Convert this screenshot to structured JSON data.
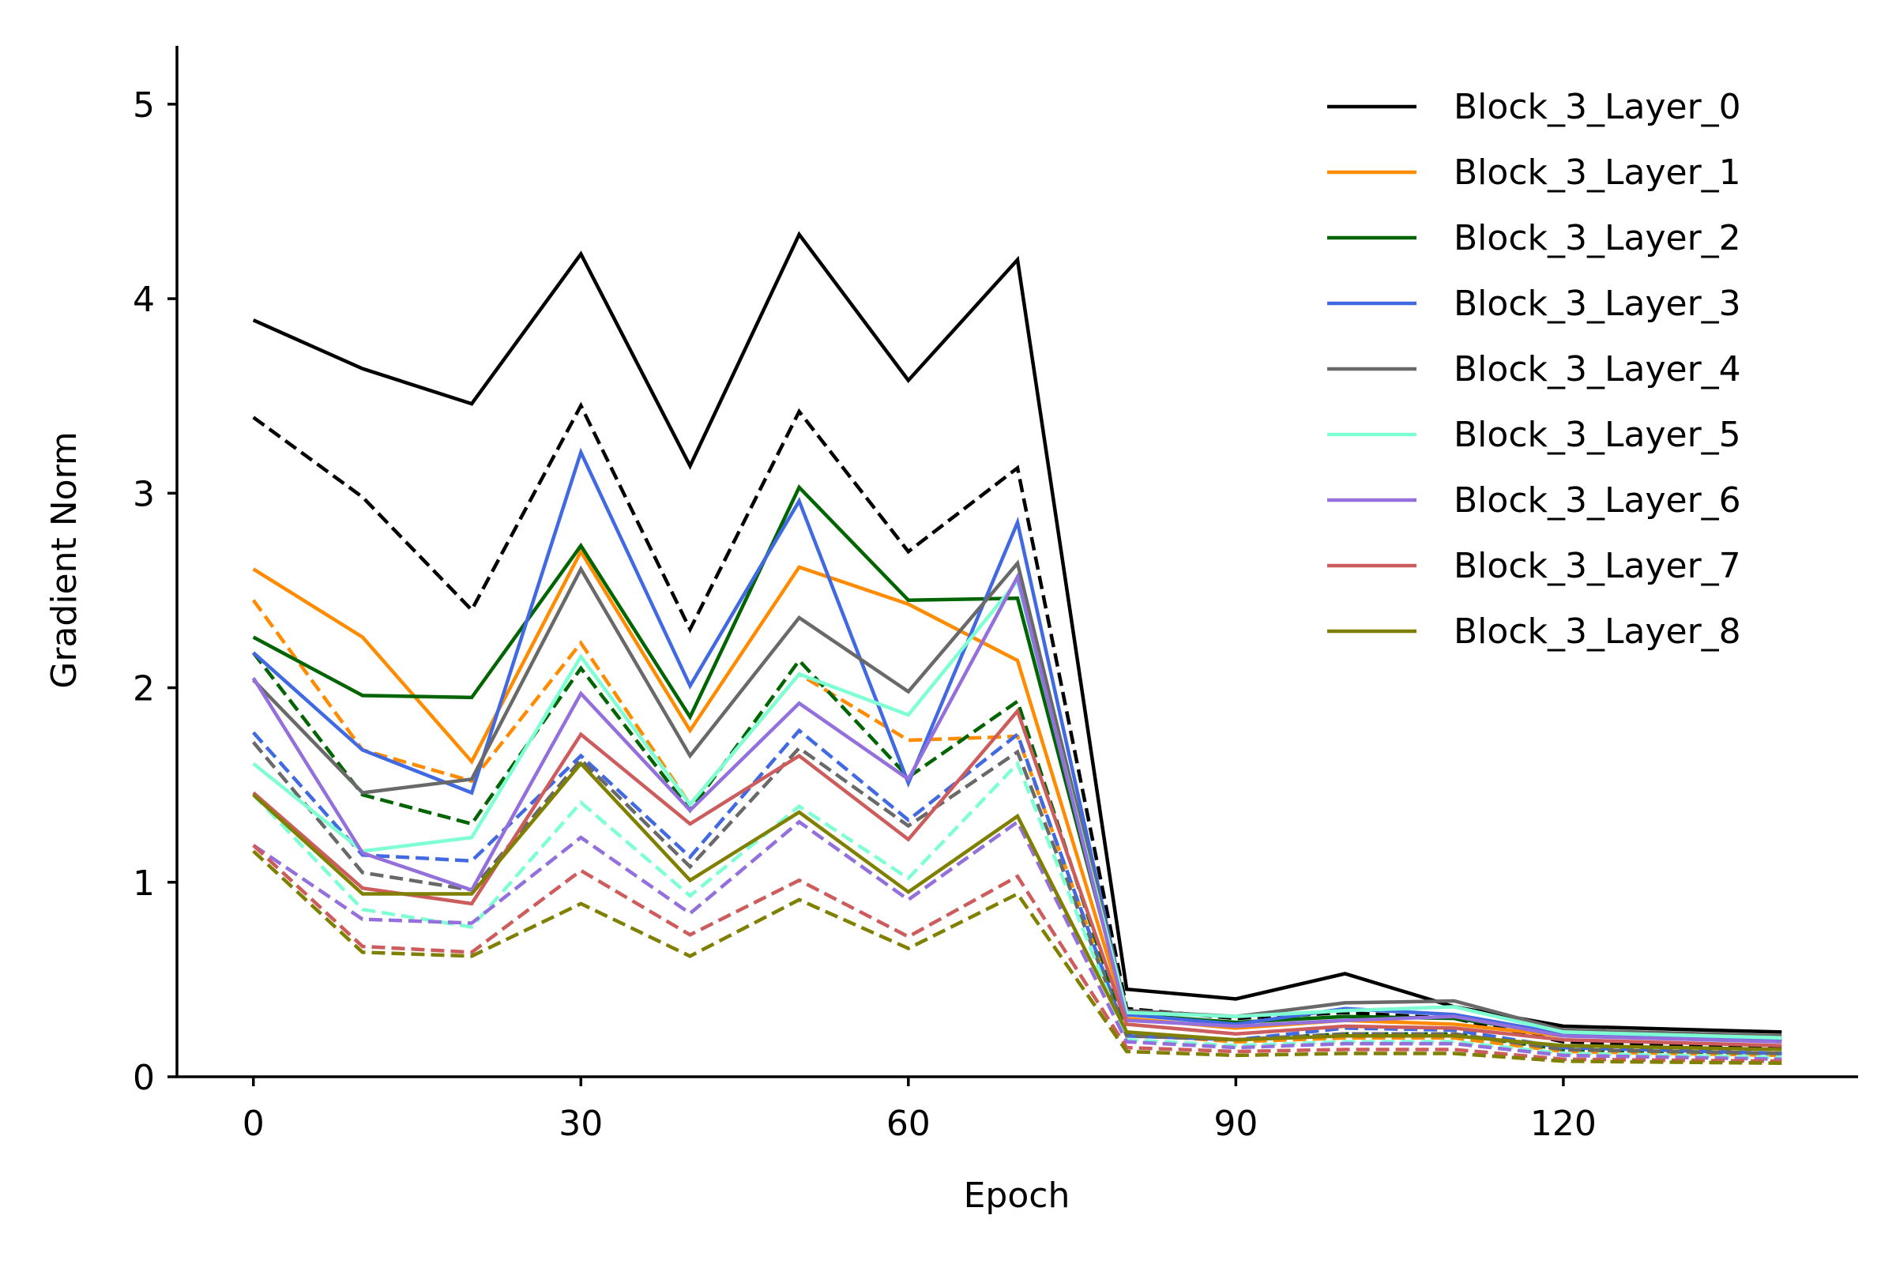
{
  "chart_data": {
    "type": "line",
    "title": "",
    "xlabel": "Epoch",
    "ylabel": "Gradient Norm",
    "xlim": [
      -7,
      147
    ],
    "ylim": [
      0,
      5.3
    ],
    "x_ticks": [
      0,
      30,
      60,
      90,
      120
    ],
    "y_ticks": [
      0,
      1,
      2,
      3,
      4,
      5
    ],
    "grid": false,
    "legend_position": "top-right",
    "x": [
      0,
      10,
      20,
      30,
      40,
      50,
      60,
      70,
      80,
      90,
      100,
      110,
      120,
      140
    ],
    "series": [
      {
        "name": "Block_3_Layer_0",
        "color": "#000000",
        "style": "solid",
        "in_legend": true,
        "values": [
          3.89,
          3.64,
          3.46,
          4.23,
          3.14,
          4.33,
          3.58,
          4.2,
          0.45,
          0.4,
          0.53,
          0.36,
          0.26,
          0.23
        ]
      },
      {
        "name": "Block_3_Layer_1",
        "color": "#ff8c00",
        "style": "solid",
        "in_legend": true,
        "values": [
          2.61,
          2.26,
          1.62,
          2.7,
          1.78,
          2.62,
          2.43,
          2.14,
          0.3,
          0.25,
          0.29,
          0.27,
          0.21,
          0.19
        ]
      },
      {
        "name": "Block_3_Layer_2",
        "color": "#006400",
        "style": "solid",
        "in_legend": true,
        "values": [
          2.26,
          1.96,
          1.95,
          2.73,
          1.85,
          3.03,
          2.45,
          2.46,
          0.32,
          0.28,
          0.31,
          0.3,
          0.22,
          0.2
        ]
      },
      {
        "name": "Block_3_Layer_3",
        "color": "#4169e1",
        "style": "solid",
        "in_legend": true,
        "values": [
          2.18,
          1.68,
          1.46,
          3.21,
          2.01,
          2.96,
          1.51,
          2.85,
          0.32,
          0.27,
          0.35,
          0.32,
          0.22,
          0.19
        ]
      },
      {
        "name": "Block_3_Layer_4",
        "color": "#696969",
        "style": "solid",
        "in_legend": true,
        "values": [
          2.04,
          1.46,
          1.53,
          2.61,
          1.65,
          2.36,
          1.98,
          2.64,
          0.34,
          0.31,
          0.38,
          0.39,
          0.24,
          0.21
        ]
      },
      {
        "name": "Block_3_Layer_5",
        "color": "#7fffd4",
        "style": "solid",
        "in_legend": true,
        "values": [
          1.61,
          1.16,
          1.23,
          2.16,
          1.4,
          2.07,
          1.86,
          2.55,
          0.33,
          0.31,
          0.34,
          0.36,
          0.23,
          0.2
        ]
      },
      {
        "name": "Block_3_Layer_6",
        "color": "#9370db",
        "style": "solid",
        "in_legend": true,
        "values": [
          2.05,
          1.15,
          0.96,
          1.97,
          1.37,
          1.92,
          1.53,
          2.57,
          0.29,
          0.26,
          0.29,
          0.31,
          0.21,
          0.18
        ]
      },
      {
        "name": "Block_3_Layer_7",
        "color": "#cd5c5c",
        "style": "solid",
        "in_legend": true,
        "values": [
          1.46,
          0.97,
          0.89,
          1.76,
          1.3,
          1.65,
          1.22,
          1.88,
          0.27,
          0.22,
          0.26,
          0.25,
          0.19,
          0.16
        ]
      },
      {
        "name": "Block_3_Layer_8",
        "color": "#808000",
        "style": "solid",
        "in_legend": true,
        "values": [
          1.45,
          0.94,
          0.94,
          1.61,
          1.01,
          1.36,
          0.95,
          1.34,
          0.23,
          0.19,
          0.21,
          0.21,
          0.16,
          0.14
        ]
      },
      {
        "name": "Block_3_Layer_0 (dashed)",
        "color": "#000000",
        "style": "dashed",
        "in_legend": false,
        "values": [
          3.39,
          2.98,
          2.4,
          3.45,
          2.3,
          3.42,
          2.7,
          3.13,
          0.35,
          0.3,
          0.33,
          0.3,
          0.18,
          0.15
        ]
      },
      {
        "name": "Block_3_Layer_1 (dashed)",
        "color": "#ff8c00",
        "style": "dashed",
        "in_legend": false,
        "values": [
          2.45,
          1.68,
          1.52,
          2.23,
          1.4,
          2.07,
          1.73,
          1.75,
          0.22,
          0.18,
          0.2,
          0.2,
          0.13,
          0.11
        ]
      },
      {
        "name": "Block_3_Layer_2 (dashed)",
        "color": "#006400",
        "style": "dashed",
        "in_legend": false,
        "values": [
          2.18,
          1.45,
          1.3,
          2.1,
          1.37,
          2.14,
          1.54,
          1.93,
          0.22,
          0.19,
          0.22,
          0.22,
          0.14,
          0.12
        ]
      },
      {
        "name": "Block_3_Layer_3 (dashed)",
        "color": "#4169e1",
        "style": "dashed",
        "in_legend": false,
        "values": [
          1.77,
          1.14,
          1.11,
          1.65,
          1.13,
          1.78,
          1.32,
          1.76,
          0.21,
          0.19,
          0.25,
          0.24,
          0.15,
          0.12
        ]
      },
      {
        "name": "Block_3_Layer_4 (dashed)",
        "color": "#696969",
        "style": "dashed",
        "in_legend": false,
        "values": [
          1.72,
          1.05,
          0.96,
          1.63,
          1.08,
          1.69,
          1.29,
          1.67,
          0.21,
          0.19,
          0.22,
          0.22,
          0.14,
          0.12
        ]
      },
      {
        "name": "Block_3_Layer_5 (dashed)",
        "color": "#7fffd4",
        "style": "dashed",
        "in_legend": false,
        "values": [
          1.45,
          0.86,
          0.77,
          1.41,
          0.93,
          1.39,
          1.02,
          1.61,
          0.19,
          0.16,
          0.18,
          0.18,
          0.12,
          0.1
        ]
      },
      {
        "name": "Block_3_Layer_6 (dashed)",
        "color": "#9370db",
        "style": "dashed",
        "in_legend": false,
        "values": [
          1.19,
          0.81,
          0.79,
          1.23,
          0.84,
          1.31,
          0.91,
          1.31,
          0.18,
          0.15,
          0.17,
          0.17,
          0.11,
          0.09
        ]
      },
      {
        "name": "Block_3_Layer_7 (dashed)",
        "color": "#cd5c5c",
        "style": "dashed",
        "in_legend": false,
        "values": [
          1.19,
          0.67,
          0.64,
          1.06,
          0.73,
          1.01,
          0.72,
          1.03,
          0.15,
          0.13,
          0.14,
          0.14,
          0.09,
          0.08
        ]
      },
      {
        "name": "Block_3_Layer_8 (dashed)",
        "color": "#808000",
        "style": "dashed",
        "in_legend": false,
        "values": [
          1.16,
          0.64,
          0.62,
          0.89,
          0.62,
          0.91,
          0.66,
          0.94,
          0.13,
          0.11,
          0.12,
          0.12,
          0.08,
          0.07
        ]
      }
    ]
  }
}
